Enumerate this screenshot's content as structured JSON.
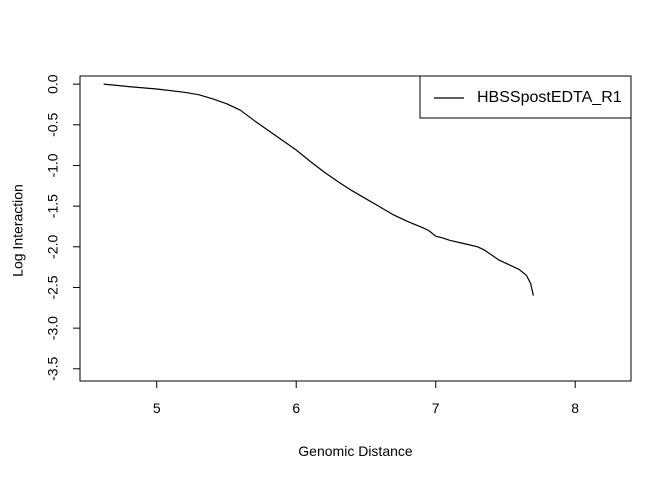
{
  "chart_data": {
    "type": "line",
    "title": "",
    "xlabel": "Genomic Distance",
    "ylabel": "Log Interaction",
    "xlim": [
      4.45,
      8.4
    ],
    "ylim": [
      -3.65,
      0.1
    ],
    "x_ticks": [
      5,
      6,
      7,
      8
    ],
    "x_tick_labels": [
      "5",
      "6",
      "7",
      "8"
    ],
    "y_ticks": [
      0.0,
      -0.5,
      -1.0,
      -1.5,
      -2.0,
      -2.5,
      -3.0,
      -3.5
    ],
    "y_tick_labels": [
      "0.0",
      "-0.5",
      "-1.0",
      "-1.5",
      "-2.0",
      "-2.5",
      "-3.0",
      "-3.5"
    ],
    "grid": false,
    "legend_position": "top-right",
    "series": [
      {
        "name": "HBSSpostEDTA_R1",
        "color": "#000000",
        "x": [
          4.62,
          4.8,
          5.0,
          5.2,
          5.3,
          5.4,
          5.5,
          5.6,
          5.7,
          5.8,
          5.9,
          6.0,
          6.1,
          6.2,
          6.3,
          6.4,
          6.5,
          6.6,
          6.7,
          6.8,
          6.9,
          6.95,
          7.0,
          7.05,
          7.1,
          7.2,
          7.3,
          7.35,
          7.4,
          7.45,
          7.5,
          7.55,
          7.6,
          7.65,
          7.68,
          7.7
        ],
        "y": [
          0.0,
          -0.03,
          -0.06,
          -0.1,
          -0.13,
          -0.18,
          -0.24,
          -0.32,
          -0.45,
          -0.57,
          -0.69,
          -0.81,
          -0.95,
          -1.08,
          -1.2,
          -1.31,
          -1.41,
          -1.51,
          -1.61,
          -1.69,
          -1.76,
          -1.8,
          -1.87,
          -1.89,
          -1.92,
          -1.96,
          -2.0,
          -2.04,
          -2.1,
          -2.16,
          -2.2,
          -2.24,
          -2.28,
          -2.35,
          -2.45,
          -2.6
        ]
      }
    ]
  }
}
